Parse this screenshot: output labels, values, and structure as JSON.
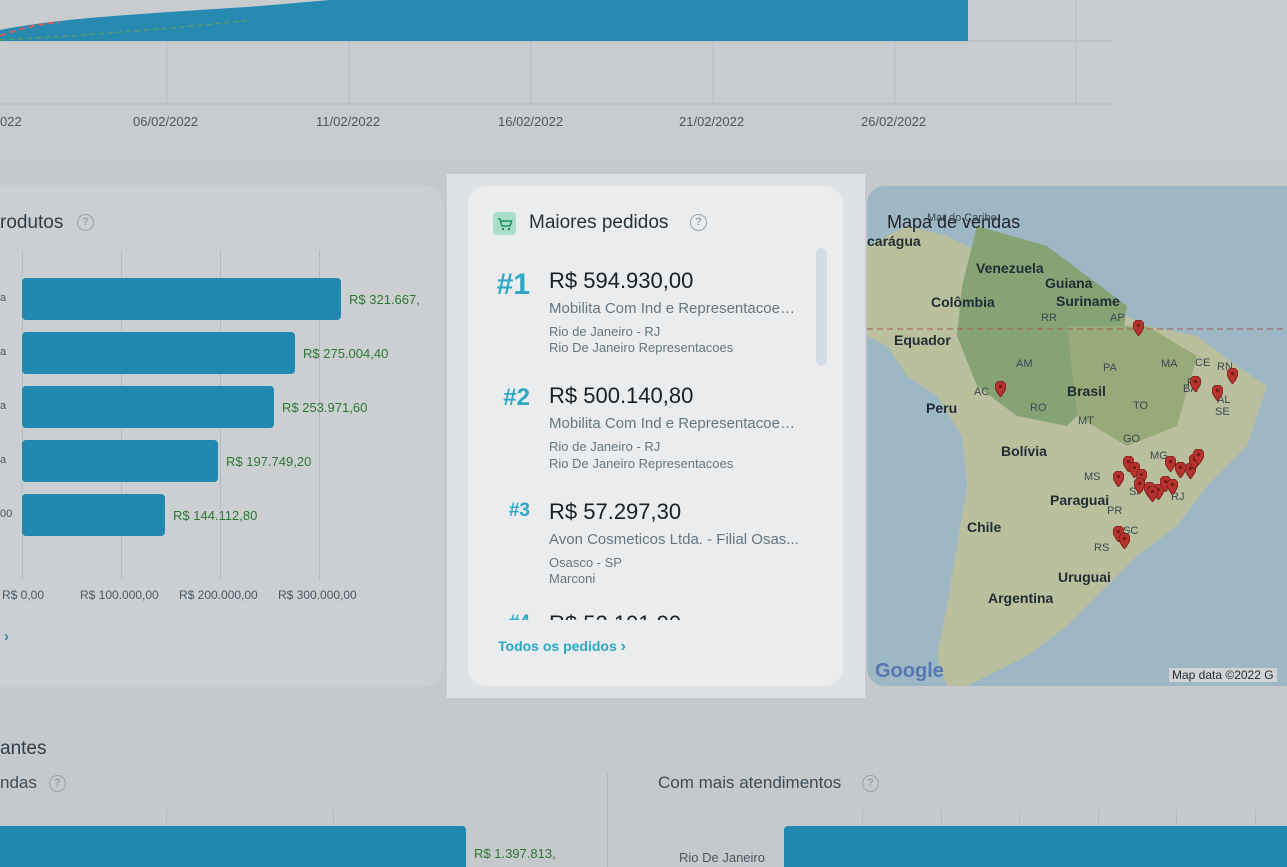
{
  "top_chart": {
    "dates": [
      "022",
      "06/02/2022",
      "11/02/2022",
      "16/02/2022",
      "21/02/2022",
      "26/02/2022"
    ]
  },
  "products": {
    "title": "rodutos",
    "bars": [
      {
        "label": "a",
        "value": "R$ 321.667,"
      },
      {
        "label": "a",
        "value": "R$ 275.004,40"
      },
      {
        "label": "a",
        "value": "R$ 253.971,60"
      },
      {
        "label": "a",
        "value": "R$ 197.749,20"
      },
      {
        "label": "00",
        "value": "R$ 144.112,80"
      }
    ],
    "bar_fraction": [
      1.0,
      0.855,
      0.79,
      0.615,
      0.448
    ],
    "axis": [
      "R$ 0,00",
      "R$ 100.000,00",
      "R$ 200.000,00",
      "R$ 300.000,00"
    ]
  },
  "orders": {
    "title": "Maiores pedidos",
    "items": [
      {
        "rank": "#1",
        "amount": "R$ 594.930,00",
        "company": "Mobilita Com Ind e Representacoes...",
        "city": "Rio de Janeiro - RJ",
        "seller": "Rio De Janeiro Representacoes"
      },
      {
        "rank": "#2",
        "amount": "R$ 500.140,80",
        "company": "Mobilita Com Ind e Representacoes...",
        "city": "Rio de Janeiro - RJ",
        "seller": "Rio De Janeiro Representacoes"
      },
      {
        "rank": "#3",
        "amount": "R$ 57.297,30",
        "company": "Avon Cosmeticos Ltda. - Filial Osas...",
        "city": "Osasco - SP",
        "seller": "Marconi"
      },
      {
        "rank": "#4",
        "amount": "R$ 52.101,90"
      }
    ],
    "all_link": "Todos os pedidos"
  },
  "map": {
    "title": "Mapa de vendas",
    "countries": [
      "carágua",
      "Venezuela",
      "Guiana",
      "Colômbia",
      "Suriname",
      "Equador",
      "Brasil",
      "Peru",
      "Bolívia",
      "Paraguai",
      "Chile",
      "Uruguai",
      "Argentina"
    ],
    "states": [
      "RR",
      "AP",
      "AM",
      "PA",
      "MA",
      "CE",
      "RN",
      "PI",
      "AC",
      "RO",
      "TO",
      "BA",
      "AL",
      "SE",
      "MT",
      "GO",
      "MS",
      "MG",
      "SP",
      "RJ",
      "PR",
      "SC",
      "RS"
    ],
    "caribe": "Mar do Caribe",
    "google": "Google",
    "attribution": "Map data ©2022 G"
  },
  "lower": {
    "title": "antes",
    "left_sub": "ndas",
    "right_sub": "Com mais atendimentos",
    "left_value": "R$ 1.397.813,",
    "right_row_label": "Rio De Janeiro"
  }
}
